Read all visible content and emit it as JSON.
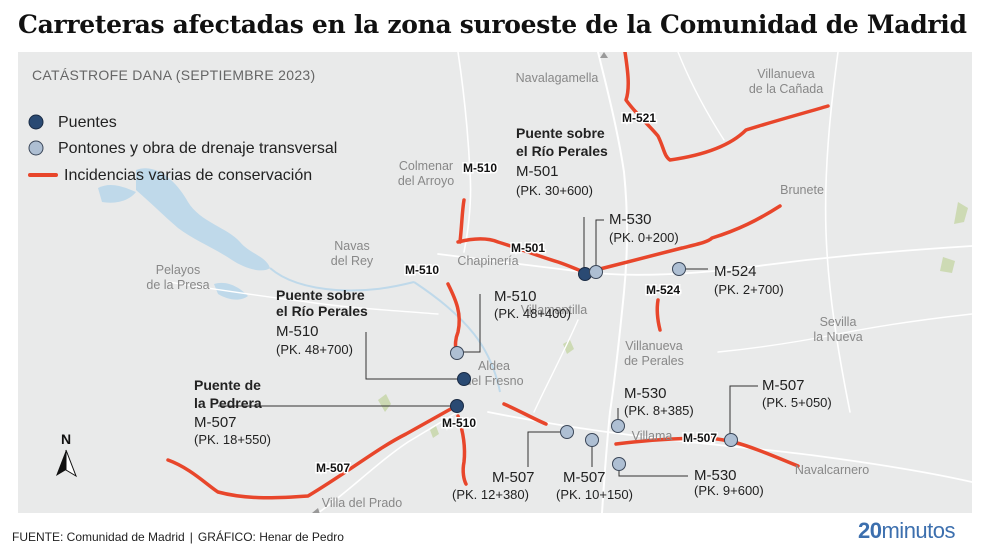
{
  "title": "Carreteras afectadas en la zona suroeste de la Comunidad de Madrid",
  "subtitle": "CATÁSTROFE DANA (SEPTIEMBRE 2023)",
  "colors": {
    "background": "#e9eaea",
    "water": "#bfd9ea",
    "road_incident": "#e8462b",
    "bridge": "#2a4a73",
    "culvert": "#aebfd3",
    "green": "#c6d6a6",
    "brand": "#3c6fae"
  },
  "legend": [
    {
      "label": "Puentes",
      "symbol": "dark-circle"
    },
    {
      "label": "Pontones y obra de drenaje transversal",
      "symbol": "light-circle"
    },
    {
      "label": "Incidencias varias de conservación",
      "symbol": "red-line"
    }
  ],
  "towns": [
    {
      "id": "navalagamella",
      "lines": [
        "Navalagamella"
      ]
    },
    {
      "id": "villanueva-canada",
      "lines": [
        "Villanueva",
        "de la Cañada"
      ]
    },
    {
      "id": "colmenar",
      "lines": [
        "Colmenar",
        "del Arroyo"
      ]
    },
    {
      "id": "brunete",
      "lines": [
        "Brunete"
      ]
    },
    {
      "id": "navas",
      "lines": [
        "Navas",
        "del Rey"
      ]
    },
    {
      "id": "pelayos",
      "lines": [
        "Pelayos",
        "de la Presa"
      ]
    },
    {
      "id": "chapineria",
      "lines": [
        "Chapinería"
      ]
    },
    {
      "id": "villamantilla",
      "lines": [
        "Villamantilla"
      ]
    },
    {
      "id": "sevilla",
      "lines": [
        "Sevilla",
        "la Nueva"
      ]
    },
    {
      "id": "villanueva-perales",
      "lines": [
        "Villanueva",
        "de Perales"
      ]
    },
    {
      "id": "aldea",
      "lines": [
        "Aldea",
        "del Fresno"
      ]
    },
    {
      "id": "villamanta",
      "lines": [
        "Villama"
      ]
    },
    {
      "id": "navalcarnero",
      "lines": [
        "Navalcarnero"
      ]
    },
    {
      "id": "villa-prado",
      "lines": [
        "Villa del Prado"
      ]
    }
  ],
  "road_labels": [
    "M-521",
    "M-510",
    "M-501",
    "M-510",
    "M-524",
    "M-510",
    "M-507",
    "M-507"
  ],
  "callouts": [
    {
      "id": "perales-501",
      "heading": [
        "Puente sobre",
        "el Río Perales"
      ],
      "road": "M-501",
      "pk": "(PK. 30+600)",
      "type": "bridge"
    },
    {
      "id": "m530-0200",
      "road": "M-530",
      "pk": "(PK. 0+200)",
      "type": "culvert"
    },
    {
      "id": "m524-2700",
      "road": "M-524",
      "pk": "(PK. 2+700)",
      "type": "culvert"
    },
    {
      "id": "m510-48400",
      "road": "M-510",
      "pk": "(PK. 48+400)",
      "type": "culvert"
    },
    {
      "id": "perales-510",
      "heading": [
        "Puente sobre",
        "el Río Perales"
      ],
      "road": "M-510",
      "pk": "(PK. 48+700)",
      "type": "bridge"
    },
    {
      "id": "pedrera",
      "heading": [
        "Puente de",
        "la Pedrera"
      ],
      "road": "M-507",
      "pk": "(PK. 18+550)",
      "type": "bridge"
    },
    {
      "id": "m530-8385",
      "road": "M-530",
      "pk": "(PK. 8+385)",
      "type": "culvert"
    },
    {
      "id": "m507-5050",
      "road": "M-507",
      "pk": "(PK. 5+050)",
      "type": "culvert"
    },
    {
      "id": "m507-12380",
      "road": "M-507",
      "pk": "(PK. 12+380)",
      "type": "culvert"
    },
    {
      "id": "m507-10150",
      "road": "M-507",
      "pk": "(PK. 10+150)",
      "type": "culvert"
    },
    {
      "id": "m530-9600",
      "road": "M-530",
      "pk": "(PK. 9+600)",
      "type": "culvert"
    }
  ],
  "compass": "N",
  "footer": {
    "source": "FUENTE: Comunidad de Madrid",
    "separator": "|",
    "credit": "GRÁFICO: Henar de Pedro"
  },
  "brand": {
    "number": "20",
    "word": "minutos"
  }
}
